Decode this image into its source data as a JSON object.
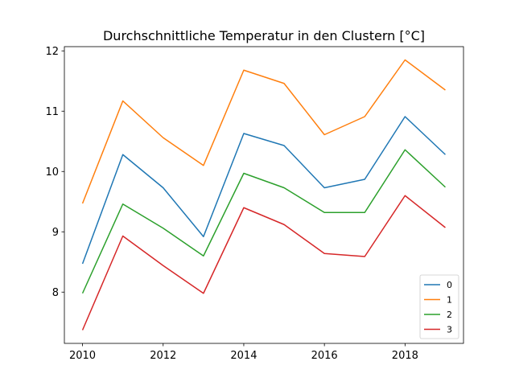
{
  "chart_data": {
    "type": "line",
    "title": "Durchschnittliche Temperatur in den Clustern [°C]",
    "xlabel": "",
    "ylabel": "",
    "x": [
      2010,
      2011,
      2012,
      2013,
      2014,
      2015,
      2016,
      2017,
      2018,
      2019
    ],
    "xticks": [
      "2010",
      "2012",
      "2014",
      "2016",
      "2018"
    ],
    "yticks": [
      "8",
      "9",
      "10",
      "11",
      "12"
    ],
    "xlim": [
      2009.55,
      2019.45
    ],
    "ylim": [
      7.15,
      12.07
    ],
    "grid": false,
    "legend": "lower-right",
    "series": [
      {
        "name": "0",
        "color": "#1f77b4",
        "values": [
          8.47,
          10.28,
          9.73,
          8.92,
          10.63,
          10.43,
          9.73,
          9.87,
          10.91,
          10.28
        ]
      },
      {
        "name": "1",
        "color": "#ff7f0e",
        "values": [
          9.47,
          11.17,
          10.56,
          10.1,
          11.68,
          11.46,
          10.61,
          10.91,
          11.85,
          11.35
        ]
      },
      {
        "name": "2",
        "color": "#2ca02c",
        "values": [
          7.98,
          9.46,
          9.06,
          8.6,
          9.97,
          9.73,
          9.32,
          9.32,
          10.36,
          9.74
        ]
      },
      {
        "name": "3",
        "color": "#d62728",
        "values": [
          7.37,
          8.93,
          8.44,
          7.98,
          9.4,
          9.12,
          8.64,
          8.59,
          9.6,
          9.07
        ]
      }
    ]
  }
}
